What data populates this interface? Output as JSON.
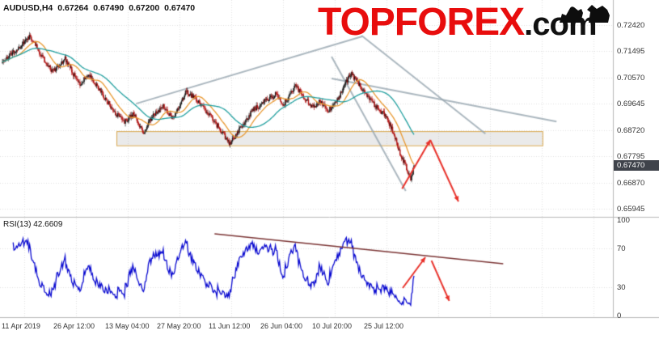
{
  "header": {
    "symbol": "AUDUSD,H4",
    "open": "0.67264",
    "high": "0.67490",
    "low": "0.67200",
    "close": "0.67470"
  },
  "logo": {
    "brand": "TOPFOREX",
    "suffix": ".com",
    "brand_color": "#e80d0d"
  },
  "price_label": "0.67470",
  "rsi_label": "RSI(13) 42.6609",
  "chart_data": [
    {
      "type": "candlestick",
      "title": "AUDUSD H4 forecast chart",
      "yticks": [
        "0.72420",
        "0.71495",
        "0.70570",
        "0.69645",
        "0.68720",
        "0.67795",
        "0.66870",
        "0.65945"
      ],
      "xticks": [
        "11 Apr 2019",
        "26 Apr 12:00",
        "13 May 04:00",
        "27 May 20:00",
        "11 Jun 12:00",
        "26 Jun 04:00",
        "10 Jul 20:00",
        "25 Jul 12:00"
      ],
      "ylim": [
        0.6562,
        0.7286
      ],
      "grid": true,
      "up_color": "#1a1a1a",
      "down_color": "#b01212",
      "ma": [
        {
          "name": "MA-fast",
          "period": 21,
          "color": "#e8972e"
        },
        {
          "name": "MA-slow",
          "period": 55,
          "color": "#1f9e9e"
        }
      ],
      "close_keypoints": [
        [
          0.0,
          0.7114
        ],
        [
          0.039,
          0.7163
        ],
        [
          0.068,
          0.7203
        ],
        [
          0.094,
          0.7134
        ],
        [
          0.121,
          0.7077
        ],
        [
          0.152,
          0.7123
        ],
        [
          0.186,
          0.7034
        ],
        [
          0.211,
          0.7066
        ],
        [
          0.238,
          0.7009
        ],
        [
          0.273,
          0.6935
        ],
        [
          0.297,
          0.69
        ],
        [
          0.318,
          0.6929
        ],
        [
          0.342,
          0.6866
        ],
        [
          0.367,
          0.6923
        ],
        [
          0.391,
          0.6957
        ],
        [
          0.416,
          0.6909
        ],
        [
          0.445,
          0.7009
        ],
        [
          0.473,
          0.698
        ],
        [
          0.496,
          0.6937
        ],
        [
          0.523,
          0.6886
        ],
        [
          0.553,
          0.6823
        ],
        [
          0.578,
          0.688
        ],
        [
          0.609,
          0.6943
        ],
        [
          0.639,
          0.6974
        ],
        [
          0.664,
          0.6997
        ],
        [
          0.684,
          0.6963
        ],
        [
          0.711,
          0.7026
        ],
        [
          0.734,
          0.6986
        ],
        [
          0.754,
          0.6952
        ],
        [
          0.773,
          0.6974
        ],
        [
          0.791,
          0.694
        ],
        [
          0.809,
          0.6963
        ],
        [
          0.828,
          0.702
        ],
        [
          0.846,
          0.7072
        ],
        [
          0.867,
          0.7032
        ],
        [
          0.889,
          0.6986
        ],
        [
          0.91,
          0.6952
        ],
        [
          0.93,
          0.6923
        ],
        [
          0.949,
          0.6866
        ],
        [
          0.965,
          0.6797
        ],
        [
          0.982,
          0.6737
        ],
        [
          0.992,
          0.6695
        ],
        [
          1.0,
          0.6747
        ]
      ],
      "last_close": 0.6747,
      "support_zone": {
        "x_from": 0.19,
        "x_to": 0.885,
        "price_low": 0.6818,
        "price_high": 0.6868,
        "fill": "rgba(180,180,180,0.28)",
        "border": "#d9a84e"
      },
      "trendlines": [
        {
          "x1": 0.222,
          "p1": 0.6965,
          "x2": 0.591,
          "p2": 0.7202,
          "color": "rgba(150,165,175,0.8)",
          "width": 2
        },
        {
          "x1": 0.541,
          "p1": 0.7131,
          "x2": 0.662,
          "p2": 0.6657,
          "color": "rgba(150,165,175,0.8)",
          "width": 2
        },
        {
          "x1": 0.59,
          "p1": 0.7205,
          "x2": 0.792,
          "p2": 0.6859,
          "color": "rgba(150,165,175,0.8)",
          "width": 2
        },
        {
          "x1": 0.541,
          "p1": 0.7054,
          "x2": 0.908,
          "p2": 0.6902,
          "color": "rgba(150,165,175,0.8)",
          "width": 2
        }
      ],
      "forecast_arrows": [
        {
          "x1": 0.656,
          "p1": 0.6665,
          "x2": 0.702,
          "p2": 0.6837,
          "color": "#e8312a",
          "width": 2
        },
        {
          "x1": 0.702,
          "p1": 0.6837,
          "x2": 0.748,
          "p2": 0.662,
          "color": "#e8312a",
          "width": 2
        }
      ]
    },
    {
      "type": "line",
      "name": "RSI(13)",
      "value": "42.6609",
      "period": 13,
      "yticks": [
        "100",
        "70",
        "30",
        "0"
      ],
      "ylim": [
        0,
        100
      ],
      "grid_levels": [
        70,
        30
      ],
      "line_color": "#0a0ad0",
      "trendline": {
        "x1": 0.35,
        "v1": 85.6,
        "x2": 0.821,
        "v2": 54.2,
        "color": "#7a3333",
        "width": 1.6
      },
      "arrows": [
        {
          "x1": 0.657,
          "v1": 28.8,
          "x2": 0.694,
          "v2": 61.0,
          "color": "#e8312a",
          "width": 2
        },
        {
          "x1": 0.704,
          "v1": 57.6,
          "x2": 0.733,
          "v2": 15.3,
          "color": "#e8312a",
          "width": 2
        }
      ]
    }
  ]
}
